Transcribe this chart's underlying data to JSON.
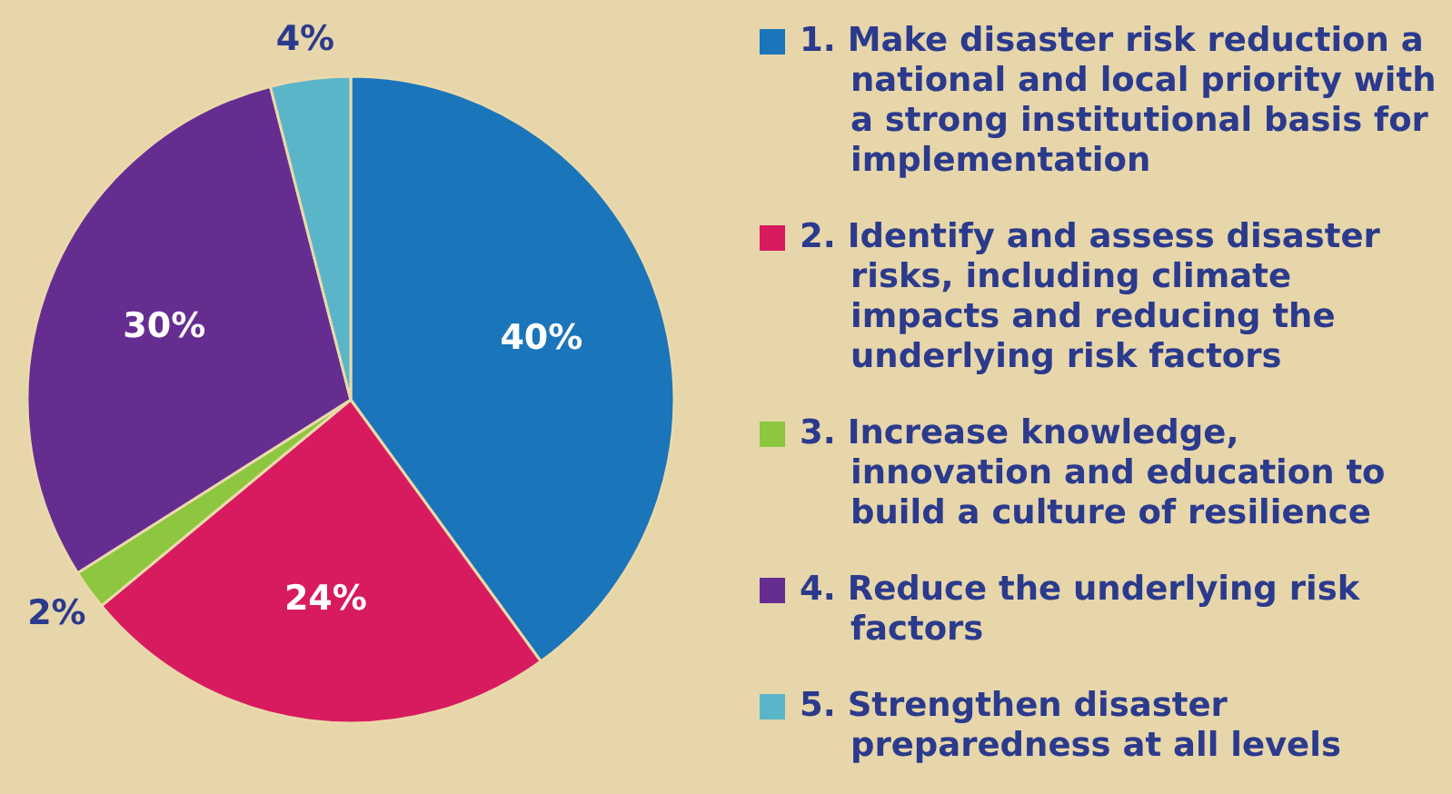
{
  "chart_data": {
    "type": "pie",
    "categories": [
      "1. Make disaster risk reduction a national and local priority with a strong institutional basis for implementation",
      "2. Identify and assess disaster risks, including climate impacts and reducing the underlying risk factors",
      "3. Increase knowledge, innovation and education to build a culture of resilience",
      "4. Reduce the underlying risk factors",
      "5. Strengthen disaster preparedness at all levels"
    ],
    "values": [
      40,
      24,
      2,
      30,
      4
    ],
    "colors": [
      "#1b75bb",
      "#d81b5e",
      "#8dc63f",
      "#662d91",
      "#5bb5c8"
    ],
    "value_labels": [
      "40%",
      "24%",
      "2%",
      "30%",
      "4%"
    ],
    "legend": "right"
  }
}
